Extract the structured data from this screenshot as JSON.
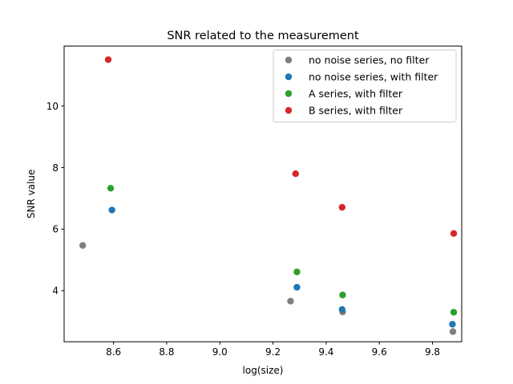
{
  "chart_data": {
    "type": "scatter",
    "title": "SNR related to the measurement",
    "xlabel": "log(size)",
    "ylabel": "SNR value",
    "xlim": [
      8.414,
      9.91
    ],
    "ylim": [
      2.34,
      11.95
    ],
    "xticks": [
      "8.6",
      "8.8",
      "9.0",
      "9.2",
      "9.4",
      "9.6",
      "9.8"
    ],
    "yticks": [
      "4",
      "6",
      "8",
      "10"
    ],
    "grid": false,
    "legend_position": "top-right",
    "series": [
      {
        "name": "no noise series, no filter",
        "color": "#7f7f7f",
        "points": [
          [
            8.484,
            5.47
          ],
          [
            9.266,
            3.66
          ],
          [
            9.462,
            3.31
          ],
          [
            9.877,
            2.67
          ]
        ]
      },
      {
        "name": "no noise series, with filter",
        "color": "#1f77b4",
        "points": [
          [
            8.594,
            6.62
          ],
          [
            9.29,
            4.11
          ],
          [
            9.46,
            3.39
          ],
          [
            9.875,
            2.91
          ]
        ]
      },
      {
        "name": "A series, with filter",
        "color": "#2ca02c",
        "points": [
          [
            8.589,
            7.33
          ],
          [
            9.29,
            4.61
          ],
          [
            9.462,
            3.86
          ],
          [
            9.88,
            3.3
          ]
        ]
      },
      {
        "name": "B series, with filter",
        "color": "#d62728",
        "points": [
          [
            8.58,
            11.51
          ],
          [
            9.285,
            7.8
          ],
          [
            9.46,
            6.71
          ],
          [
            9.88,
            5.86
          ]
        ]
      }
    ]
  }
}
